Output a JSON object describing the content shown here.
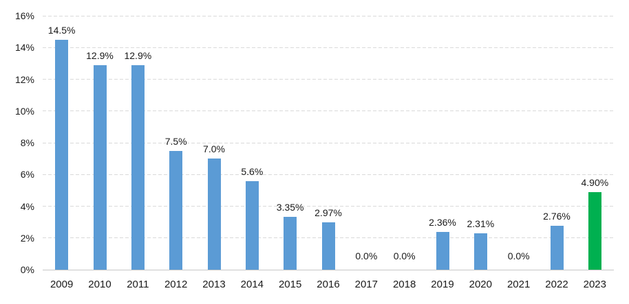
{
  "chart_data": {
    "type": "bar",
    "title": "",
    "xlabel": "",
    "ylabel": "",
    "categories": [
      "2009",
      "2010",
      "2011",
      "2012",
      "2013",
      "2014",
      "2015",
      "2016",
      "2017",
      "2018",
      "2019",
      "2020",
      "2021",
      "2022",
      "2023"
    ],
    "values": [
      14.5,
      12.9,
      12.9,
      7.5,
      7.0,
      5.6,
      3.35,
      2.97,
      0.0,
      0.0,
      2.36,
      2.31,
      0.0,
      2.76,
      4.9
    ],
    "labels": [
      "14.5%",
      "12.9%",
      "12.9%",
      "7.5%",
      "7.0%",
      "5.6%",
      "3.35%",
      "2.97%",
      "0.0%",
      "0.0%",
      "2.36%",
      "2.31%",
      "0.0%",
      "2.76%",
      "4.90%"
    ],
    "bar_colors": [
      "#5B9BD5",
      "#5B9BD5",
      "#5B9BD5",
      "#5B9BD5",
      "#5B9BD5",
      "#5B9BD5",
      "#5B9BD5",
      "#5B9BD5",
      "#5B9BD5",
      "#5B9BD5",
      "#5B9BD5",
      "#5B9BD5",
      "#5B9BD5",
      "#5B9BD5",
      "#00B050"
    ],
    "ylim": [
      0,
      16
    ],
    "ytick_labels": [
      "0%",
      "2%",
      "4%",
      "6%",
      "8%",
      "10%",
      "12%",
      "14%",
      "16%"
    ],
    "grid": "horizontal-dashed",
    "legend": "none"
  },
  "colors": {
    "bar_default": "#5B9BD5",
    "bar_highlight": "#00B050",
    "gridline": "#D9D9D9",
    "axis_line": "#C6C6C6",
    "text": "#1A1A1A",
    "background": "#FFFFFF"
  }
}
